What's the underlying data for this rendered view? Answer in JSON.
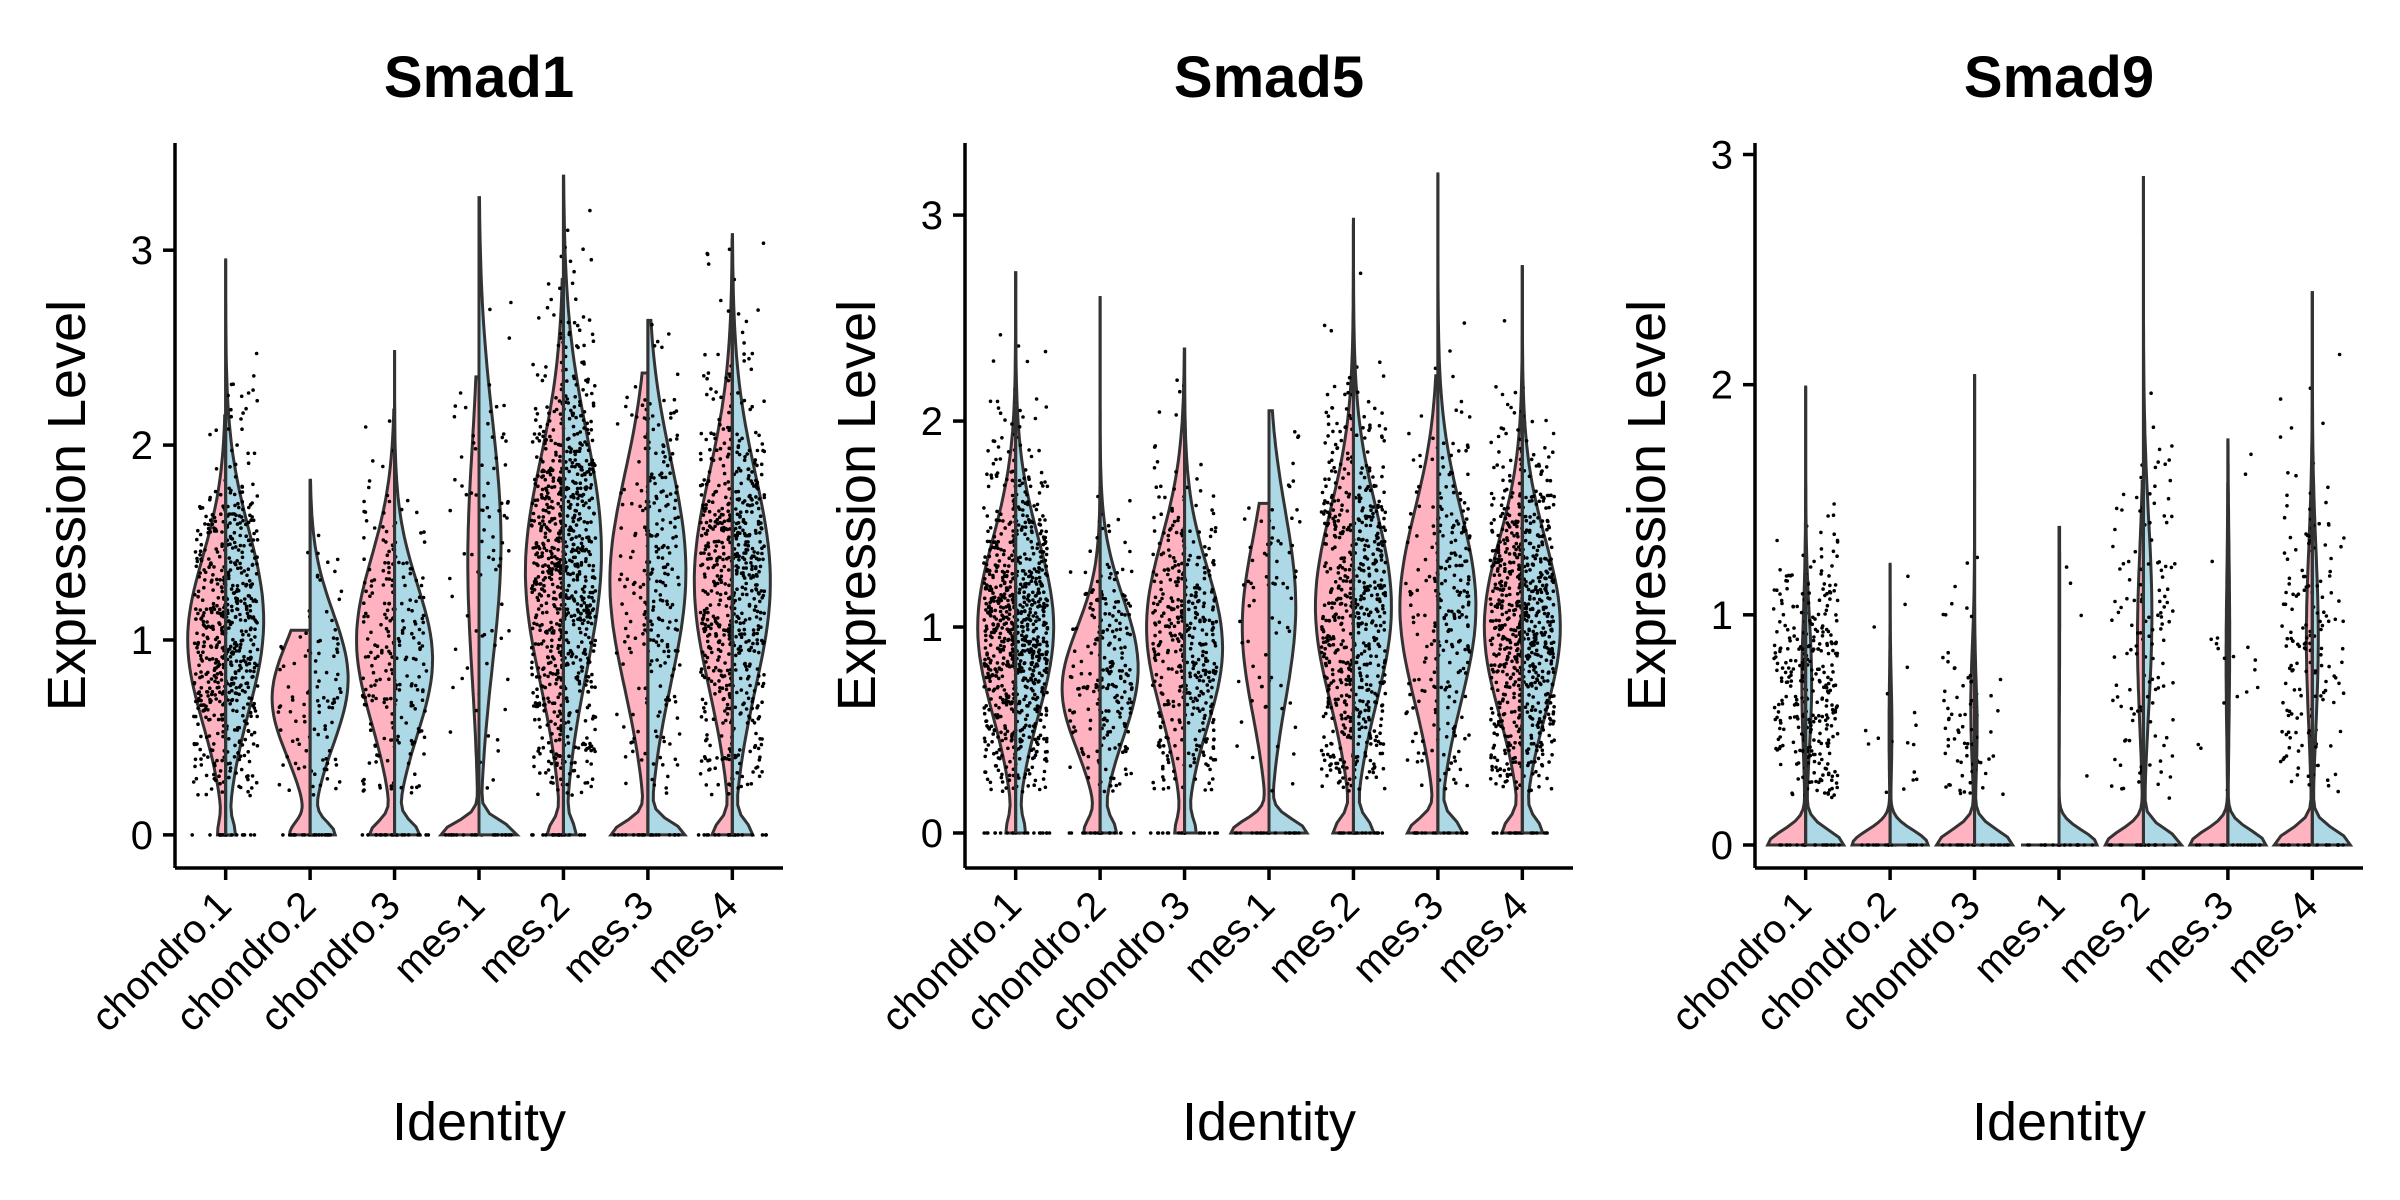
{
  "colors": {
    "left_half": "#FFB3C1",
    "right_half": "#ADD8E6",
    "outline": "#333333",
    "points": "#000000"
  },
  "chart_data": [
    {
      "type": "violin",
      "title": "Smad1",
      "xlabel": "Identity",
      "ylabel": "Expression Level",
      "categories": [
        "chondro.1",
        "chondro.2",
        "chondro.3",
        "mes.1",
        "mes.2",
        "mes.3",
        "mes.4"
      ],
      "ylim": [
        -0.17,
        3.55
      ],
      "yticks": [
        0,
        1,
        2,
        3
      ],
      "grid": false,
      "legend": "none",
      "groups": [
        {
          "category": "chondro.1",
          "left": {
            "max": 2.15,
            "median": 1.0,
            "zero_frac": 0.12,
            "n_points": 300
          },
          "right": {
            "max": 2.95,
            "median": 1.1,
            "zero_frac": 0.15,
            "n_points": 380
          }
        },
        {
          "category": "chondro.2",
          "left": {
            "max": 1.05,
            "median": 0.7,
            "zero_frac": 0.3,
            "n_points": 40
          },
          "right": {
            "max": 1.82,
            "median": 0.8,
            "zero_frac": 0.35,
            "n_points": 70
          }
        },
        {
          "category": "chondro.3",
          "left": {
            "max": 2.18,
            "median": 1.0,
            "zero_frac": 0.35,
            "n_points": 130
          },
          "right": {
            "max": 2.48,
            "median": 0.9,
            "zero_frac": 0.35,
            "n_points": 110
          }
        },
        {
          "category": "mes.1",
          "left": {
            "max": 2.35,
            "median": 1.4,
            "zero_frac": 0.75,
            "n_points": 25
          },
          "right": {
            "max": 3.27,
            "median": 1.5,
            "zero_frac": 0.6,
            "n_points": 60
          }
        },
        {
          "category": "mes.2",
          "left": {
            "max": 2.85,
            "median": 1.35,
            "zero_frac": 0.25,
            "n_points": 420
          },
          "right": {
            "max": 3.38,
            "median": 1.45,
            "zero_frac": 0.2,
            "n_points": 500
          }
        },
        {
          "category": "mes.3",
          "left": {
            "max": 2.37,
            "median": 1.3,
            "zero_frac": 0.45,
            "n_points": 70
          },
          "right": {
            "max": 2.64,
            "median": 1.35,
            "zero_frac": 0.45,
            "n_points": 200
          }
        },
        {
          "category": "mes.4",
          "left": {
            "max": 3.05,
            "median": 1.3,
            "zero_frac": 0.3,
            "n_points": 340
          },
          "right": {
            "max": 3.08,
            "median": 1.3,
            "zero_frac": 0.3,
            "n_points": 380
          }
        }
      ]
    },
    {
      "type": "violin",
      "title": "Smad5",
      "xlabel": "Identity",
      "ylabel": "Expression Level",
      "categories": [
        "chondro.1",
        "chondro.2",
        "chondro.3",
        "mes.1",
        "mes.2",
        "mes.3",
        "mes.4"
      ],
      "ylim": [
        -0.17,
        3.35
      ],
      "yticks": [
        0,
        1,
        2,
        3
      ],
      "grid": false,
      "legend": "none",
      "groups": [
        {
          "category": "chondro.1",
          "left": {
            "max": 2.72,
            "median": 1.0,
            "zero_frac": 0.15,
            "n_points": 420
          },
          "right": {
            "max": 2.72,
            "median": 1.0,
            "zero_frac": 0.15,
            "n_points": 480
          }
        },
        {
          "category": "chondro.2",
          "left": {
            "max": 1.75,
            "median": 0.7,
            "zero_frac": 0.25,
            "n_points": 60
          },
          "right": {
            "max": 2.6,
            "median": 0.8,
            "zero_frac": 0.25,
            "n_points": 170
          }
        },
        {
          "category": "chondro.3",
          "left": {
            "max": 2.35,
            "median": 1.0,
            "zero_frac": 0.15,
            "n_points": 210
          },
          "right": {
            "max": 2.35,
            "median": 0.9,
            "zero_frac": 0.18,
            "n_points": 230
          }
        },
        {
          "category": "mes.1",
          "left": {
            "max": 1.6,
            "median": 1.0,
            "zero_frac": 0.55,
            "n_points": 30
          },
          "right": {
            "max": 2.05,
            "median": 1.1,
            "zero_frac": 0.55,
            "n_points": 50
          }
        },
        {
          "category": "mes.2",
          "left": {
            "max": 2.95,
            "median": 1.1,
            "zero_frac": 0.3,
            "n_points": 340
          },
          "right": {
            "max": 2.98,
            "median": 1.1,
            "zero_frac": 0.3,
            "n_points": 360
          }
        },
        {
          "category": "mes.3",
          "left": {
            "max": 2.22,
            "median": 1.1,
            "zero_frac": 0.4,
            "n_points": 80
          },
          "right": {
            "max": 3.2,
            "median": 1.1,
            "zero_frac": 0.35,
            "n_points": 190
          }
        },
        {
          "category": "mes.4",
          "left": {
            "max": 2.75,
            "median": 1.0,
            "zero_frac": 0.3,
            "n_points": 380
          },
          "right": {
            "max": 2.75,
            "median": 1.0,
            "zero_frac": 0.3,
            "n_points": 400
          }
        }
      ]
    },
    {
      "type": "violin",
      "title": "Smad9",
      "xlabel": "Identity",
      "ylabel": "Expression Level",
      "categories": [
        "chondro.1",
        "chondro.2",
        "chondro.3",
        "mes.1",
        "mes.2",
        "mes.3",
        "mes.4"
      ],
      "ylim": [
        -0.1,
        3.05
      ],
      "yticks": [
        0,
        1,
        2,
        3
      ],
      "grid": false,
      "legend": "none",
      "groups": [
        {
          "category": "chondro.1",
          "left": {
            "max": 1.55,
            "median": 0.7,
            "zero_frac": 0.9,
            "n_points": 120
          },
          "right": {
            "max": 1.99,
            "median": 0.7,
            "zero_frac": 0.85,
            "n_points": 220
          }
        },
        {
          "category": "chondro.2",
          "left": {
            "max": 0.95,
            "median": 0.5,
            "zero_frac": 0.97,
            "n_points": 4
          },
          "right": {
            "max": 1.22,
            "median": 0.5,
            "zero_frac": 0.95,
            "n_points": 14
          }
        },
        {
          "category": "chondro.3",
          "left": {
            "max": 2.04,
            "median": 0.6,
            "zero_frac": 0.9,
            "n_points": 60
          },
          "right": {
            "max": 2.04,
            "median": 0.5,
            "zero_frac": 0.93,
            "n_points": 18
          }
        },
        {
          "category": "mes.1",
          "left": {
            "max": 0.0,
            "median": 0.0,
            "zero_frac": 1.0,
            "n_points": 0
          },
          "right": {
            "max": 1.38,
            "median": 1.1,
            "zero_frac": 0.98,
            "n_points": 4
          }
        },
        {
          "category": "mes.2",
          "left": {
            "max": 1.58,
            "median": 0.9,
            "zero_frac": 0.85,
            "n_points": 55
          },
          "right": {
            "max": 2.9,
            "median": 1.0,
            "zero_frac": 0.8,
            "n_points": 80
          }
        },
        {
          "category": "mes.3",
          "left": {
            "max": 1.57,
            "median": 0.8,
            "zero_frac": 0.95,
            "n_points": 8
          },
          "right": {
            "max": 1.76,
            "median": 0.9,
            "zero_frac": 0.95,
            "n_points": 12
          }
        },
        {
          "category": "mes.4",
          "left": {
            "max": 2.4,
            "median": 0.9,
            "zero_frac": 0.85,
            "n_points": 110
          },
          "right": {
            "max": 2.4,
            "median": 0.9,
            "zero_frac": 0.85,
            "n_points": 70
          }
        }
      ]
    }
  ]
}
